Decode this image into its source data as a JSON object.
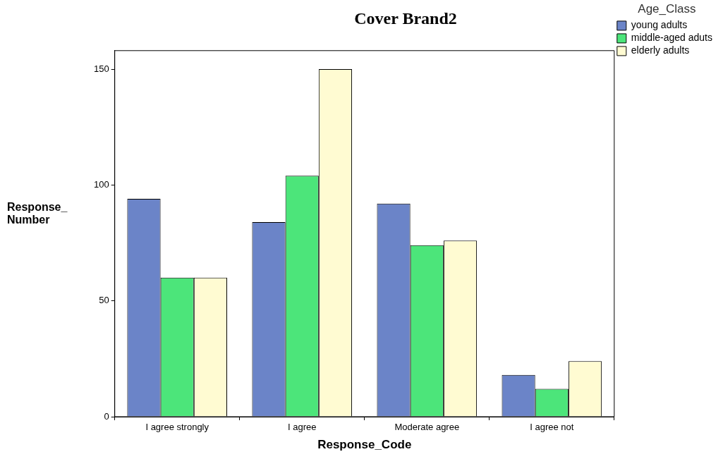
{
  "chart_data": {
    "type": "bar",
    "title": "Cover Brand2",
    "xlabel": "Response_Code",
    "ylabel": "Response_ Number",
    "legend_title": "Age_Class",
    "legend": "top right",
    "grid": false,
    "categories": [
      "I agree strongly",
      "I agree",
      "Moderate agree",
      "I agree not"
    ],
    "ylim": [
      0,
      158
    ],
    "yticks": [
      0,
      50,
      100,
      150
    ],
    "series": [
      {
        "name": "young adults",
        "color": "#6b84c8",
        "values": [
          94,
          84,
          92,
          18
        ]
      },
      {
        "name": "middle-aged aduts",
        "color": "#4ce57a",
        "values": [
          60,
          104,
          74,
          12
        ]
      },
      {
        "name": "elderly adults",
        "color": "#fffbd2",
        "values": [
          60,
          150,
          76,
          24
        ]
      }
    ]
  }
}
